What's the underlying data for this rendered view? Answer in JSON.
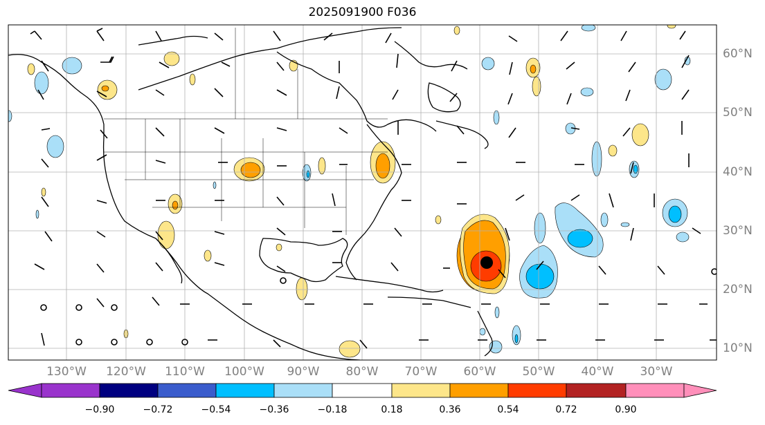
{
  "title": "2025091900 F036",
  "lon_labels": [
    "130°W",
    "120°W",
    "110°W",
    "100°W",
    "90°W",
    "80°W",
    "70°W",
    "60°W",
    "50°W",
    "40°W",
    "30°W"
  ],
  "lat_labels": [
    "60°N",
    "50°N",
    "40°N",
    "30°N",
    "20°N",
    "10°N"
  ],
  "colorbar": {
    "ticks": [
      "−0.90",
      "−0.72",
      "−0.54",
      "−0.36",
      "−0.18",
      "0.18",
      "0.36",
      "0.54",
      "0.72",
      "0.90"
    ],
    "colors": [
      "#9933cc",
      "#000080",
      "#3a5ccc",
      "#00bfff",
      "#aadff8",
      "#ffffff",
      "#fde68a",
      "#ff9f00",
      "#ff3c00",
      "#b22222",
      "#ff8fba"
    ],
    "extend": "both"
  },
  "marker": {
    "name": "storm-center",
    "lon": -61.0,
    "lat": 24.5
  }
}
